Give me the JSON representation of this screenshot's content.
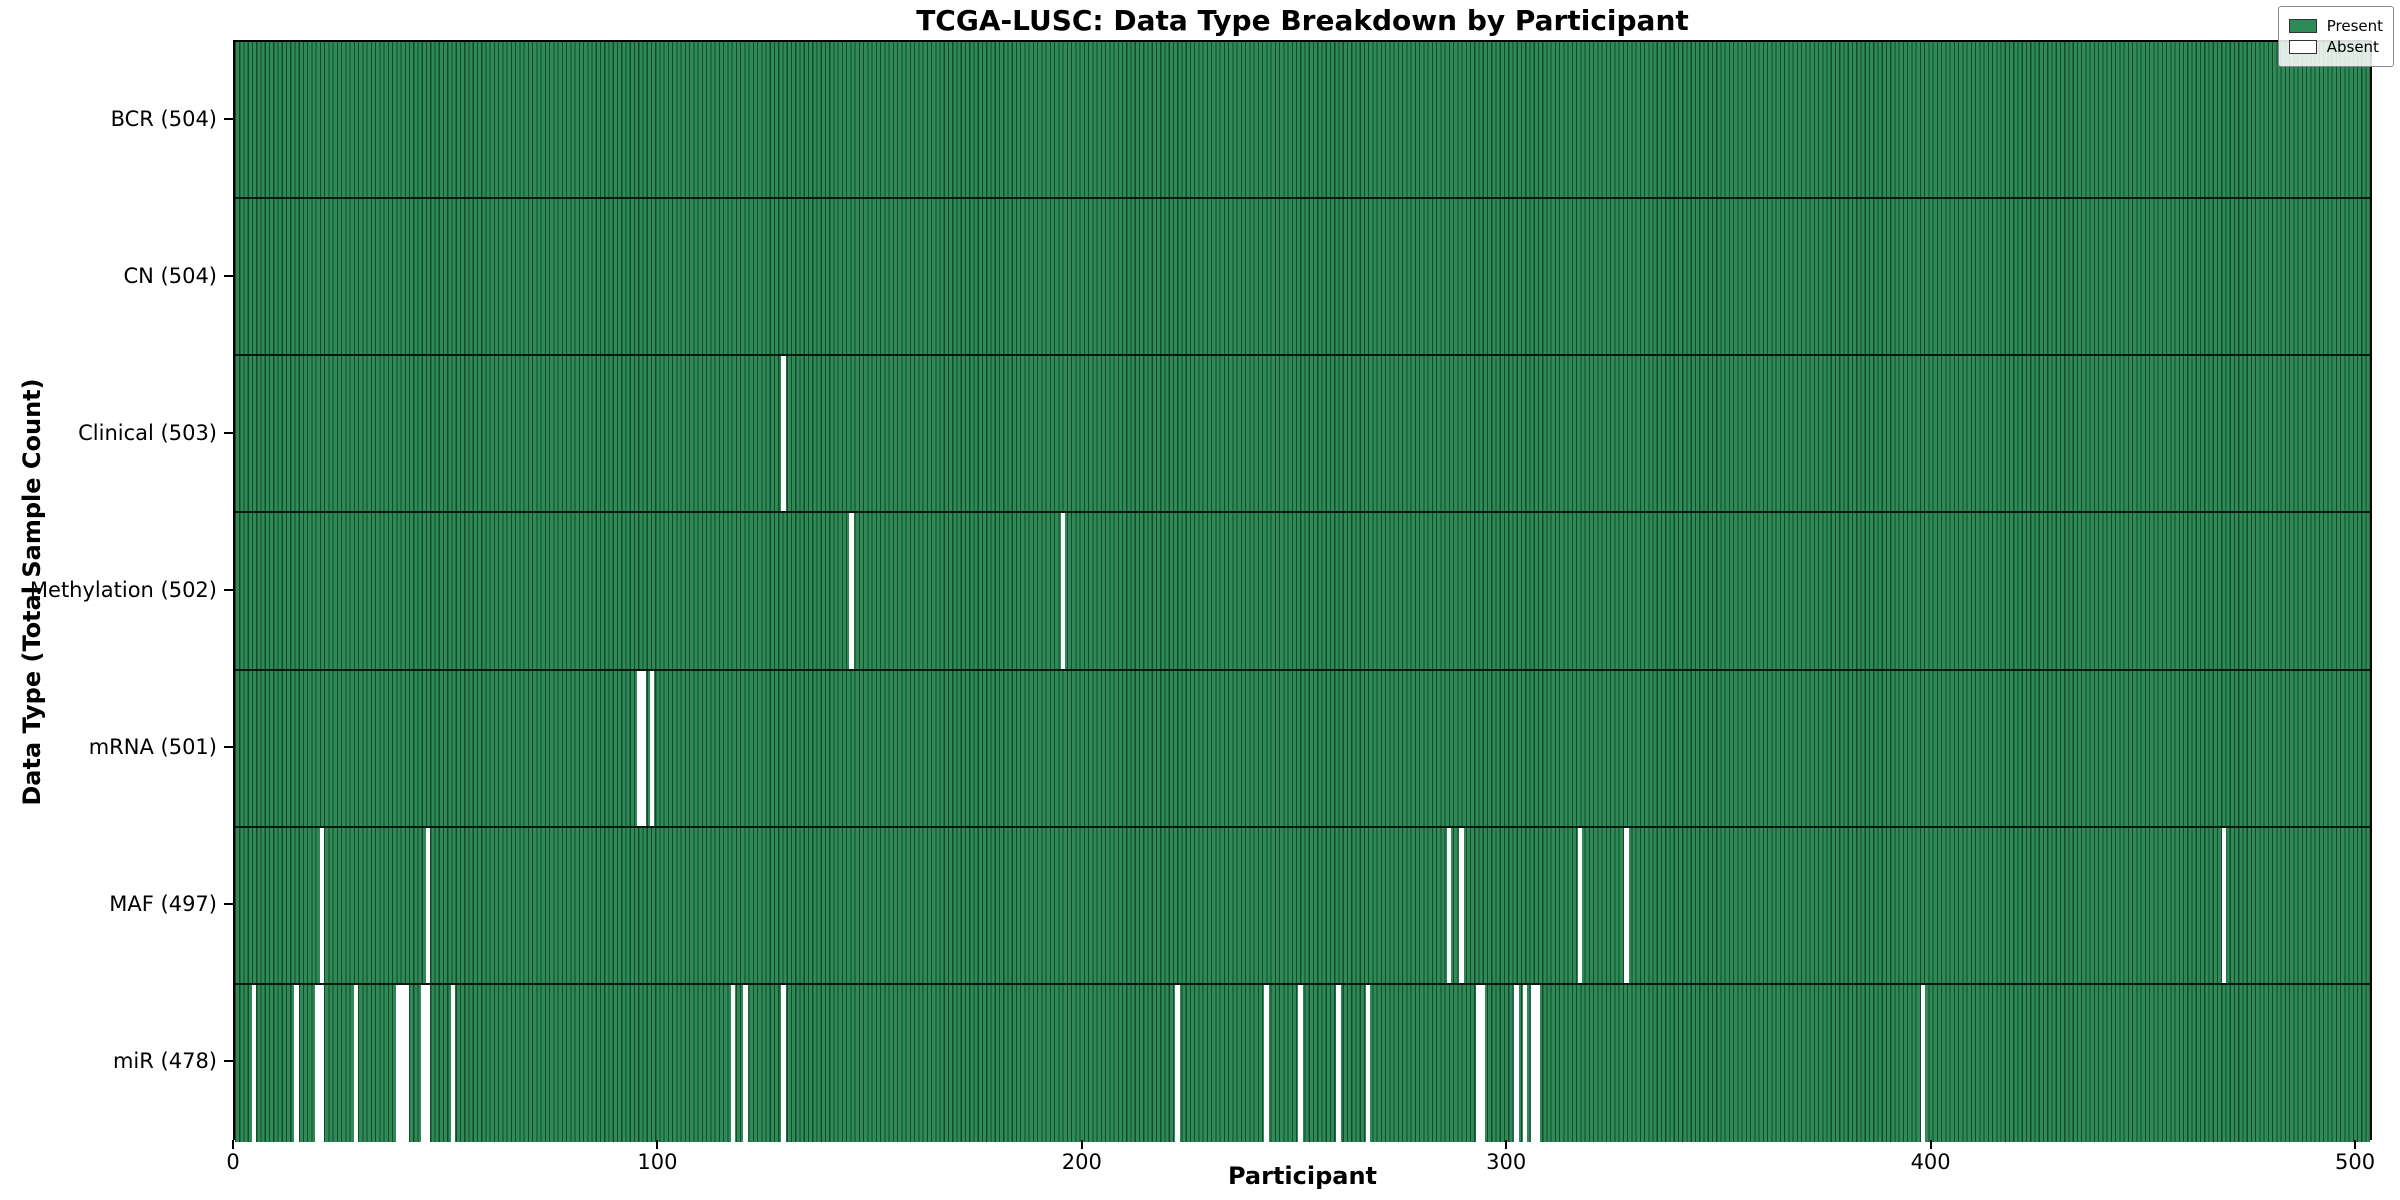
{
  "title": "TCGA-LUSC: Data Type Breakdown by Participant",
  "xlabel": "Participant",
  "ylabel": "Data Type (Total Sample Count)",
  "legend": {
    "entries": [
      {
        "label": "Present",
        "color": "#2e8b57"
      },
      {
        "label": "Absent",
        "color": "#ffffff"
      }
    ]
  },
  "colors": {
    "present": "#2e8b57",
    "absent": "#ffffff",
    "bar_edge": "#17482c",
    "axis": "#000000"
  },
  "chart_data": {
    "type": "heatmap",
    "title": "TCGA-LUSC: Data Type Breakdown by Participant",
    "xlabel": "Participant",
    "ylabel": "Data Type (Total Sample Count)",
    "n_participants": 504,
    "x_ticks": [
      0,
      100,
      200,
      300,
      400,
      500
    ],
    "xlim": [
      0,
      504
    ],
    "legend_position": "upper right",
    "grid": false,
    "rows": [
      {
        "label": "BCR (504)",
        "total": 504,
        "absent_participants": []
      },
      {
        "label": "CN (504)",
        "total": 504,
        "absent_participants": []
      },
      {
        "label": "Clinical (503)",
        "total": 503,
        "absent_participants": [
          129
        ]
      },
      {
        "label": "Methylation (502)",
        "total": 502,
        "absent_participants": [
          145,
          195
        ]
      },
      {
        "label": "mRNA (501)",
        "total": 501,
        "absent_participants": [
          95,
          96,
          98
        ]
      },
      {
        "label": "MAF (497)",
        "total": 497,
        "absent_participants": [
          20,
          45,
          286,
          289,
          317,
          328,
          469
        ]
      },
      {
        "label": "miR (478)",
        "total": 478,
        "absent_participants": [
          4,
          14,
          19,
          20,
          28,
          38,
          39,
          40,
          44,
          45,
          51,
          117,
          120,
          129,
          222,
          243,
          251,
          260,
          267,
          293,
          294,
          302,
          304,
          306,
          307,
          398
        ]
      }
    ]
  }
}
